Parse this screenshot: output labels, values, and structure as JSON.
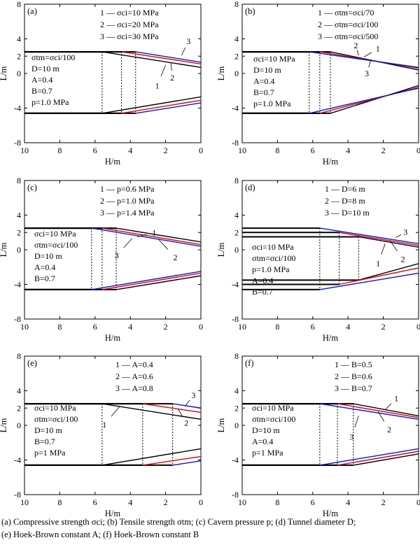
{
  "caption": {
    "line1": "(a) Compressive strength σci; (b) Tensile strength σtm; (c) Cavern pressure p; (d) Tunnel diameter D;",
    "line2": "(e) Hoek-Brown constant A; (f) Hoek-Brown constant B"
  },
  "chart_data": [
    {
      "type": "line",
      "panel": "(a)",
      "xlabel": "H/m",
      "ylabel": "L/m",
      "xlim": [
        10,
        0
      ],
      "ylim": [
        -8,
        8
      ],
      "xticks": [
        10,
        8,
        6,
        4,
        2,
        0
      ],
      "yticks": [
        8,
        4,
        2,
        0,
        -4,
        -8
      ],
      "legend": [
        "1 — σci=10 MPa",
        "2 — σci=20 MPa",
        "3 — σci=30 MPa"
      ],
      "params": [
        "σtm=σci/100",
        "D=10 m",
        "A=0.4",
        "B=0.7",
        "p=1.0 MPa"
      ],
      "series": [
        {
          "name": "1",
          "color": "#000000",
          "x0": 5.6,
          "upper": [
            2.5,
            0.7
          ],
          "lower": [
            -4.6,
            -2.7
          ]
        },
        {
          "name": "2",
          "color": "#e00000",
          "x0": 4.5,
          "upper": [
            2.5,
            1.1
          ],
          "lower": [
            -4.6,
            -3.1
          ]
        },
        {
          "name": "3",
          "color": "#0018e0",
          "x0": 3.7,
          "upper": [
            2.5,
            1.3
          ],
          "lower": [
            -4.6,
            -3.4
          ]
        }
      ]
    },
    {
      "type": "line",
      "panel": "(b)",
      "xlabel": "H/m",
      "ylabel": "L/m",
      "xlim": [
        10,
        0
      ],
      "ylim": [
        -8,
        8
      ],
      "xticks": [
        10,
        8,
        6,
        4,
        2,
        0
      ],
      "yticks": [
        8,
        4,
        2,
        0,
        -4,
        -8
      ],
      "legend": [
        "1 — σtm=σci/70",
        "2 — σtm=σci/100",
        "3 — σtm=σci/500"
      ],
      "params": [
        "σci=10 MPa",
        "D=10 m",
        "A=0.4",
        "B=0.7",
        "p=1.0 MPa"
      ],
      "series": [
        {
          "name": "1",
          "color": "#000000",
          "x0": 5.0,
          "upper": [
            2.5,
            0.4
          ],
          "lower": [
            -4.6,
            -1.4
          ]
        },
        {
          "name": "2",
          "color": "#e00000",
          "x0": 5.6,
          "upper": [
            2.5,
            0.6
          ],
          "lower": [
            -4.6,
            -1.6
          ]
        },
        {
          "name": "3",
          "color": "#0018e0",
          "x0": 6.2,
          "upper": [
            2.5,
            0.7
          ],
          "lower": [
            -4.6,
            -1.7
          ]
        }
      ]
    },
    {
      "type": "line",
      "panel": "(c)",
      "xlabel": "H/m",
      "ylabel": "L/m",
      "xlim": [
        10,
        0
      ],
      "ylim": [
        -8,
        8
      ],
      "xticks": [
        10,
        8,
        6,
        4,
        2,
        0
      ],
      "yticks": [
        8,
        4,
        2,
        0,
        -4,
        -8
      ],
      "legend": [
        "1 — p=0.6 MPa",
        "2 — p=1.0 MPa",
        "3 — p=1.4 MPa"
      ],
      "params": [
        "σci=10 MPa",
        "σtm=σci/100",
        "D=10 m",
        "A=0.4",
        "B=0.7"
      ],
      "series": [
        {
          "name": "1",
          "color": "#000000",
          "x0": 4.8,
          "upper": [
            2.5,
            0.9
          ],
          "lower": [
            -4.6,
            -3.0
          ]
        },
        {
          "name": "2",
          "color": "#e00000",
          "x0": 5.6,
          "upper": [
            2.5,
            0.6
          ],
          "lower": [
            -4.6,
            -2.7
          ]
        },
        {
          "name": "3",
          "color": "#0018e0",
          "x0": 6.2,
          "upper": [
            2.5,
            0.4
          ],
          "lower": [
            -4.6,
            -2.5
          ]
        }
      ]
    },
    {
      "type": "line",
      "panel": "(d)",
      "xlabel": "H/m",
      "ylabel": "L/m",
      "xlim": [
        10,
        0
      ],
      "ylim": [
        -8,
        8
      ],
      "xticks": [
        10,
        8,
        6,
        4,
        2,
        0
      ],
      "yticks": [
        8,
        4,
        2,
        0,
        -4,
        -8
      ],
      "legend": [
        "1 — D=6 m",
        "2 — D=8 m",
        "3 — D=10 m"
      ],
      "params": [
        "σci=10 MPa",
        "σtm=σci/100",
        "p=1.0 MPa",
        "A=0.4",
        "B=0.7"
      ],
      "series": [
        {
          "name": "1",
          "color": "#000000",
          "x0": 3.4,
          "upper": [
            1.5,
            0.3
          ],
          "lower": [
            -3.5,
            -1.6
          ]
        },
        {
          "name": "2",
          "color": "#e00000",
          "x0": 4.5,
          "upper": [
            2.0,
            0.5
          ],
          "lower": [
            -4.0,
            -2.1
          ]
        },
        {
          "name": "3",
          "color": "#0018e0",
          "x0": 5.6,
          "upper": [
            2.5,
            0.7
          ],
          "lower": [
            -4.6,
            -2.7
          ]
        }
      ]
    },
    {
      "type": "line",
      "panel": "(e)",
      "xlabel": "H/m",
      "ylabel": "L/m",
      "xlim": [
        10,
        0
      ],
      "ylim": [
        -8,
        8
      ],
      "xticks": [
        10,
        8,
        6,
        4,
        2,
        0
      ],
      "yticks": [
        8,
        4,
        2,
        0,
        -4,
        -8
      ],
      "legend": [
        "1 — A=0.4",
        "2 — A=0.6",
        "3 — A=0.8"
      ],
      "params": [
        "σci=10 MPa",
        "σtm=σci/100",
        "D=10 m",
        "B=0.7",
        "p=1 MPa"
      ],
      "series": [
        {
          "name": "1",
          "color": "#000000",
          "x0": 5.6,
          "upper": [
            2.5,
            0.7
          ],
          "lower": [
            -4.6,
            -2.7
          ]
        },
        {
          "name": "2",
          "color": "#e00000",
          "x0": 3.3,
          "upper": [
            2.5,
            1.5
          ],
          "lower": [
            -4.6,
            -3.6
          ]
        },
        {
          "name": "3",
          "color": "#0018e0",
          "x0": 1.6,
          "upper": [
            2.5,
            2.0
          ],
          "lower": [
            -4.6,
            -4.1
          ]
        }
      ]
    },
    {
      "type": "line",
      "panel": "(f)",
      "xlabel": "H/m",
      "ylabel": "L/m",
      "xlim": [
        10,
        0
      ],
      "ylim": [
        -8,
        8
      ],
      "xticks": [
        10,
        8,
        6,
        4,
        2,
        0
      ],
      "yticks": [
        8,
        4,
        2,
        0,
        -4,
        -8
      ],
      "legend": [
        "1 — B=0.5",
        "2 — B=0.6",
        "3 — B=0.7"
      ],
      "params": [
        "σci=10 MPa",
        "σtm=σci/100",
        "D=10 m",
        "A=0.4",
        "p=1 MPa"
      ],
      "series": [
        {
          "name": "1",
          "color": "#000000",
          "x0": 3.7,
          "upper": [
            2.5,
            1.1
          ],
          "lower": [
            -4.6,
            -3.3
          ]
        },
        {
          "name": "2",
          "color": "#e00000",
          "x0": 4.6,
          "upper": [
            2.5,
            0.9
          ],
          "lower": [
            -4.6,
            -3.0
          ]
        },
        {
          "name": "3",
          "color": "#0018e0",
          "x0": 5.6,
          "upper": [
            2.5,
            0.7
          ],
          "lower": [
            -4.6,
            -2.7
          ]
        }
      ]
    }
  ]
}
